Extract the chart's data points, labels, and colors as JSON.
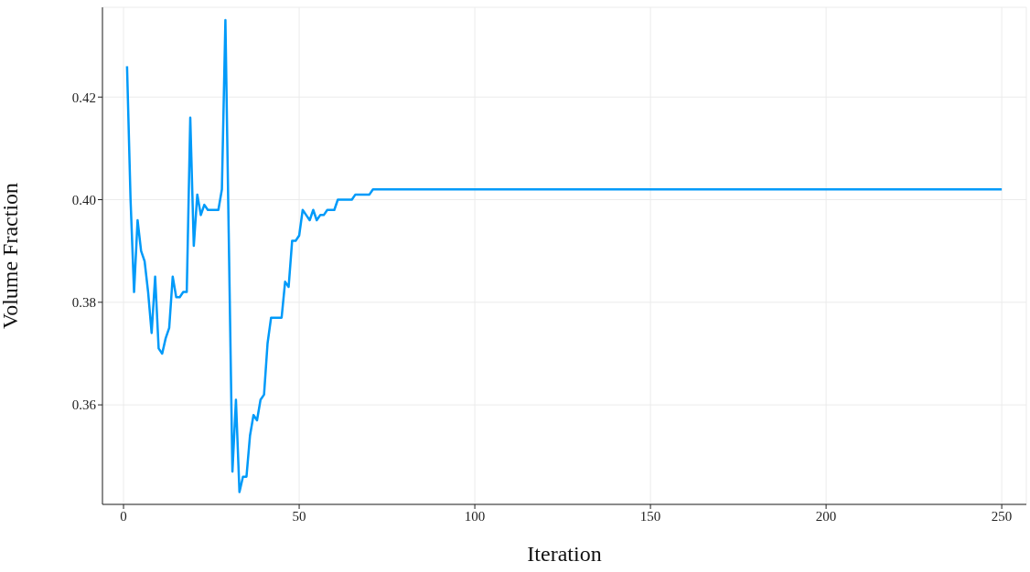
{
  "chart_data": {
    "type": "line",
    "xlabel": "Iteration",
    "ylabel": "Volume Fraction",
    "x": [
      1,
      2,
      3,
      4,
      5,
      6,
      7,
      8,
      9,
      10,
      11,
      12,
      13,
      14,
      15,
      16,
      17,
      18,
      19,
      20,
      21,
      22,
      23,
      24,
      25,
      26,
      27,
      28,
      29,
      30,
      31,
      32,
      33,
      34,
      35,
      36,
      37,
      38,
      39,
      40,
      41,
      42,
      43,
      44,
      45,
      46,
      47,
      48,
      49,
      50,
      51,
      52,
      53,
      54,
      55,
      56,
      57,
      58,
      59,
      60,
      61,
      62,
      63,
      64,
      65,
      66,
      67,
      68,
      69,
      70,
      71,
      72,
      100,
      150,
      200,
      250
    ],
    "series": [
      {
        "color": "#009af9",
        "values": [
          0.426,
          0.4,
          0.382,
          0.396,
          0.39,
          0.388,
          0.382,
          0.374,
          0.385,
          0.371,
          0.37,
          0.373,
          0.375,
          0.385,
          0.381,
          0.381,
          0.382,
          0.382,
          0.416,
          0.391,
          0.401,
          0.397,
          0.399,
          0.398,
          0.398,
          0.398,
          0.398,
          0.402,
          0.435,
          0.391,
          0.347,
          0.361,
          0.343,
          0.346,
          0.346,
          0.354,
          0.358,
          0.357,
          0.361,
          0.362,
          0.372,
          0.377,
          0.377,
          0.377,
          0.377,
          0.384,
          0.383,
          0.392,
          0.392,
          0.393,
          0.398,
          0.397,
          0.396,
          0.398,
          0.396,
          0.397,
          0.397,
          0.398,
          0.398,
          0.398,
          0.4,
          0.4,
          0.4,
          0.4,
          0.4,
          0.401,
          0.401,
          0.401,
          0.401,
          0.401,
          0.402,
          0.402,
          0.402,
          0.402,
          0.402,
          0.402
        ]
      }
    ],
    "xlim": [
      -6,
      257
    ],
    "xticks": [
      0,
      50,
      100,
      150,
      200,
      250
    ],
    "ylim": [
      0.3406,
      0.4375
    ],
    "yticks": [
      0.36,
      0.38,
      {
        "value": 0.4,
        "label": "0.40"
      },
      0.42
    ],
    "grid": true,
    "legend": false,
    "marker": "none",
    "line_style": "solid"
  }
}
